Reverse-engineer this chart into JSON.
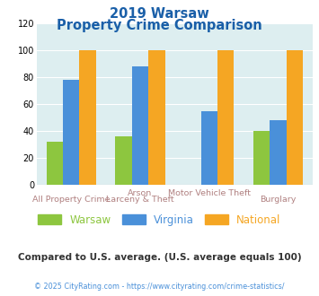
{
  "title_line1": "2019 Warsaw",
  "title_line2": "Property Crime Comparison",
  "warsaw": [
    32,
    36,
    0,
    40
  ],
  "virginia": [
    78,
    88,
    55,
    48
  ],
  "national": [
    100,
    100,
    100,
    100
  ],
  "warsaw_color": "#8dc63f",
  "virginia_color": "#4a90d9",
  "national_color": "#f5a623",
  "ylim": [
    0,
    120
  ],
  "yticks": [
    0,
    20,
    40,
    60,
    80,
    100,
    120
  ],
  "bg_color": "#ddeef0",
  "title_color": "#1a5fa8",
  "annotation": "Compared to U.S. average. (U.S. average equals 100)",
  "annotation_color": "#333333",
  "footer": "© 2025 CityRating.com - https://www.cityrating.com/crime-statistics/",
  "footer_color": "#4a90d9",
  "legend_labels": [
    "Warsaw",
    "Virginia",
    "National"
  ],
  "legend_colors": [
    "#8dc63f",
    "#4a90d9",
    "#f5a623"
  ],
  "xlabel_top": [
    "",
    "Arson",
    "Motor Vehicle Theft",
    ""
  ],
  "xlabel_bot": [
    "All Property Crime",
    "Larceny & Theft",
    "",
    "Burglary"
  ],
  "xlabel_color": "#b08080"
}
